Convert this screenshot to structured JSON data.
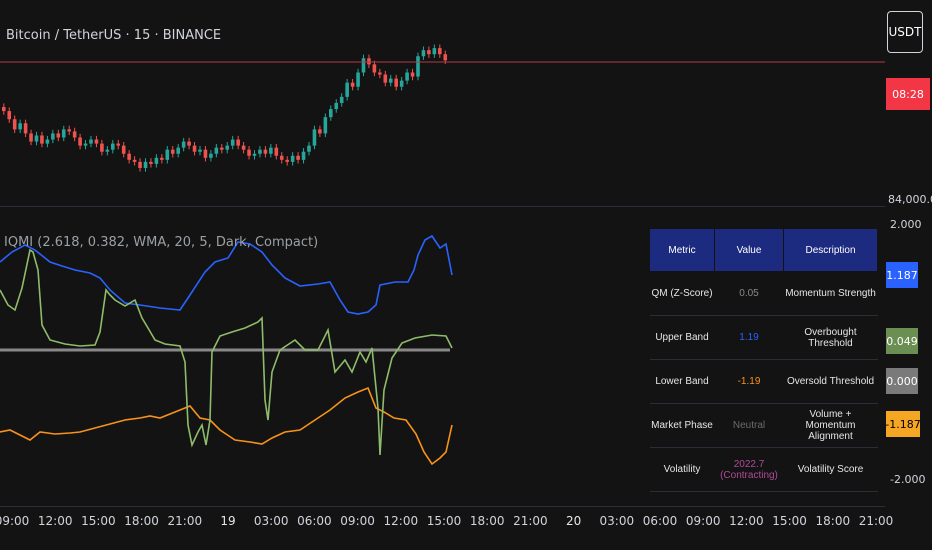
{
  "header": {
    "symbol": "Bitcoin / TetherUS · 15 · BINANCE",
    "currency": "USDT"
  },
  "price_scale": {
    "countdown_top": "",
    "countdown": "08:28",
    "countdown_color": "#f23645",
    "level": "84,000.00"
  },
  "indicator": {
    "label": "IQMI (2.618, 0.382, WMA, 20, 5, Dark, Compact)",
    "scale_top": "2.000",
    "scale_bottom": "-2.000",
    "badges": {
      "upper": "1.187",
      "qm": "0.049",
      "zero": "0.000",
      "lower": "-1.187"
    },
    "colors": {
      "upper": "#2962ff",
      "lower": "#f7931a",
      "qm_green": "#8fbc6a",
      "zero": "#8a8a8a",
      "bear": "#ef5350"
    }
  },
  "table": {
    "headers": [
      "Metric",
      "Value",
      "Description"
    ],
    "rows": [
      {
        "metric": "QM (Z-Score)",
        "value": "0.05",
        "value_color": "#8a8a8a",
        "description": "Momentum Strength"
      },
      {
        "metric": "Upper Band",
        "value": "1.19",
        "value_color": "#2962ff",
        "description": "Overbought Threshold"
      },
      {
        "metric": "Lower Band",
        "value": "-1.19",
        "value_color": "#f7931a",
        "description": "Oversold Threshold"
      },
      {
        "metric": "Market Phase",
        "value": "Neutral",
        "value_color": "#6b6b6b",
        "description": "Volume + Momentum Alignment"
      },
      {
        "metric": "Volatility",
        "value": "2022.7 (Contracting)",
        "value_color": "#b04a9a",
        "description": "Volatility Score"
      }
    ]
  },
  "time_axis": [
    "09:00",
    "12:00",
    "15:00",
    "18:00",
    "21:00",
    "19",
    "03:00",
    "06:00",
    "09:00",
    "12:00",
    "15:00",
    "18:00",
    "21:00",
    "20",
    "03:00",
    "06:00",
    "09:00",
    "12:00",
    "15:00",
    "18:00",
    "21:00"
  ],
  "candles": {
    "bull_color": "#26a69a",
    "bear_color": "#ef5350",
    "closes": [
      100.5,
      98.5,
      96.0,
      97.5,
      95.0,
      93.0,
      94.5,
      92.5,
      93.5,
      95.0,
      94.0,
      96.0,
      95.5,
      94.0,
      92.0,
      92.5,
      93.5,
      92.5,
      90.5,
      91.0,
      92.5,
      92.0,
      90.0,
      88.5,
      88.0,
      86.5,
      88.0,
      87.5,
      89.0,
      88.5,
      91.0,
      90.0,
      91.5,
      93.0,
      92.0,
      90.5,
      91.0,
      89.0,
      90.0,
      91.5,
      91.0,
      92.0,
      93.5,
      92.0,
      91.0,
      89.5,
      90.0,
      91.0,
      90.0,
      91.5,
      89.5,
      88.5,
      88.0,
      89.5,
      88.5,
      90.5,
      92.0,
      96.0,
      95.0,
      99.0,
      101.0,
      102.5,
      104.0,
      107.5,
      106.5,
      110.0,
      113.5,
      112.0,
      110.0,
      109.5,
      107.5,
      108.5,
      106.5,
      108.0,
      110.0,
      109.0,
      114.0,
      115.5,
      114.5,
      116.0,
      114.5,
      113.0
    ]
  }
}
